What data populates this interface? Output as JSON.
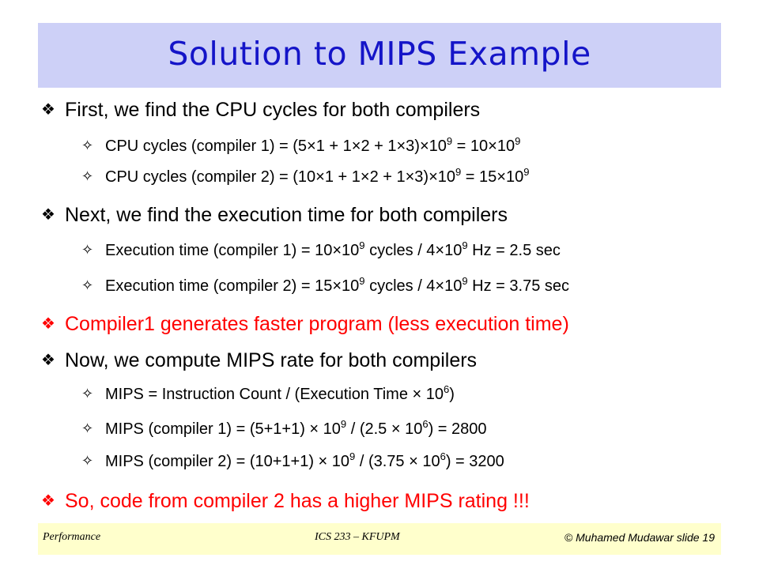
{
  "slide": {
    "title": "Solution to MIPS Example",
    "bullet1": {
      "text": "First, we find the CPU cycles for both compilers",
      "sub1": {
        "pre": "CPU cycles (compiler 1) = (5×1 + 1×2 + 1×3)×10",
        "sup1": "9",
        "mid": " = 10×10",
        "sup2": "9"
      },
      "sub2": {
        "pre": "CPU cycles (compiler 2) = (10×1 + 1×2 + 1×3)×10",
        "sup1": "9",
        "mid": " = 15×10",
        "sup2": "9"
      }
    },
    "bullet2": {
      "text": "Next, we find the execution time for both compilers",
      "sub1": {
        "pre": "Execution time (compiler 1) = 10×10",
        "sup1": "9",
        "mid": " cycles / 4×10",
        "sup2": "9",
        "post": " Hz = 2.5 sec"
      },
      "sub2": {
        "pre": "Execution time (compiler 2) = 15×10",
        "sup1": "9",
        "mid": " cycles / 4×10",
        "sup2": "9",
        "post": " Hz = 3.75 sec"
      }
    },
    "bullet3": {
      "text": "Compiler1 generates faster program (less execution time)"
    },
    "bullet4": {
      "text": "Now, we compute MIPS rate for both compilers",
      "sub1": {
        "pre": "MIPS = Instruction Count / (Execution Time × 10",
        "sup1": "6",
        "post": ")"
      },
      "sub2": {
        "pre": "MIPS (compiler 1) = (5+1+1) × 10",
        "sup1": "9",
        "mid": " / (2.5 × 10",
        "sup2": "6",
        "post": ") = 2800"
      },
      "sub3": {
        "pre": "MIPS (compiler 2) = (10+1+1) × 10",
        "sup1": "9",
        "mid": " / (3.75 × 10",
        "sup2": "6",
        "post": ") = 3200"
      }
    },
    "bullet5": {
      "text": "So, code from compiler 2 has a higher MIPS rating !!!"
    },
    "bullet_glyph": "❖",
    "sub_bullet_glyph": "✧"
  },
  "footer": {
    "left": "Performance",
    "center": "ICS 233 – KFUPM",
    "right": "© Muhamed Mudawar  slide 19"
  },
  "colors": {
    "title_bg": "#cdd0f7",
    "title_text": "#1414c8",
    "highlight": "#ff0000",
    "footer_bg": "#ffffcc"
  }
}
